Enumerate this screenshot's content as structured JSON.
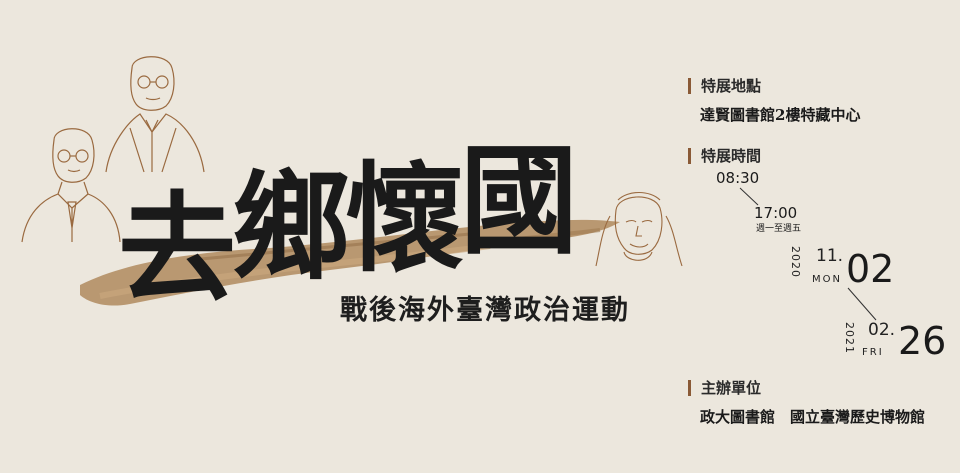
{
  "title": {
    "chars": [
      "去",
      "鄉",
      "懷",
      "國"
    ]
  },
  "subtitle": "戰後海外臺灣政治運動",
  "venue": {
    "label": "特展地點",
    "value": "達賢圖書館2樓特藏中心"
  },
  "hours": {
    "label": "特展時間",
    "open": "08:30",
    "close": "17:00",
    "days": "週一至週五"
  },
  "dates": {
    "start": {
      "year": "2020",
      "month": "11.",
      "dow": "MON",
      "day": "02"
    },
    "end": {
      "year": "2021",
      "month": "02.",
      "dow": "FRI",
      "day": "26"
    }
  },
  "organizer": {
    "label": "主辦單位",
    "value": "政大圖書館　國立臺灣歷史博物館"
  },
  "colors": {
    "background": "#ece7dd",
    "brush": "#b08a5e",
    "accent": "#8a5a36",
    "sketch": "#9a6a40"
  }
}
